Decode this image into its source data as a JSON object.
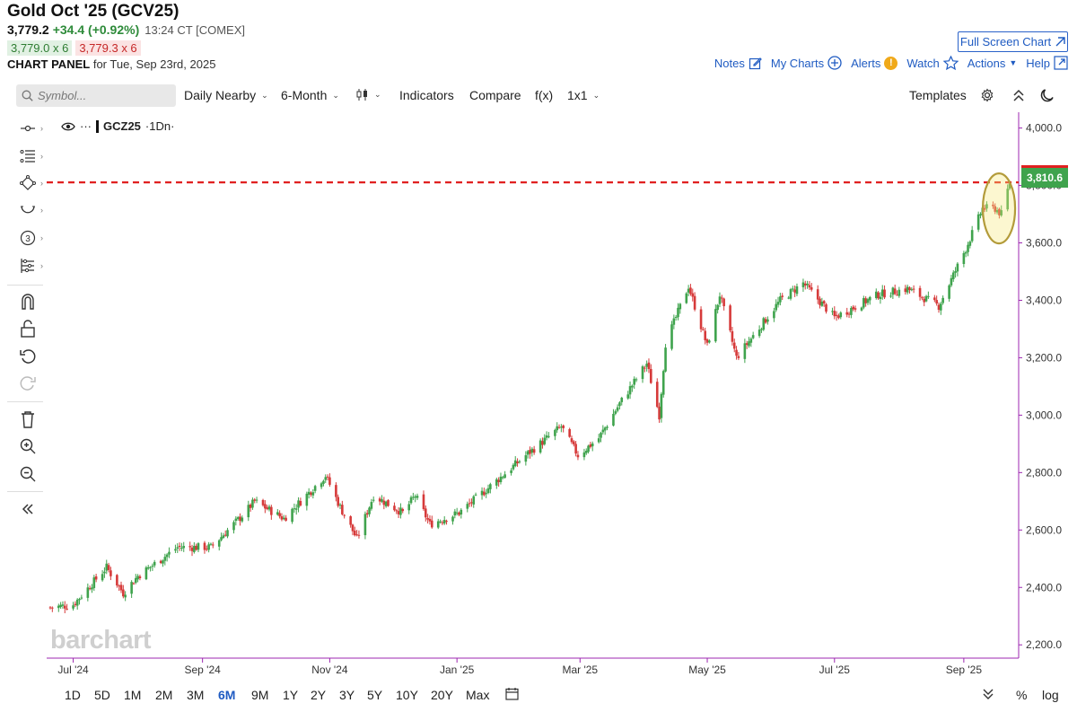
{
  "header": {
    "title": "Gold Oct '25 (GCV25)",
    "last": "3,779.2",
    "change": "+34.4 (+0.92%)",
    "time": "13:24 CT [COMEX]",
    "bid": "3,779.0 x 6",
    "ask": "3,779.3 x 6",
    "panel_label": "CHART PANEL",
    "panel_date": "for Tue, Sep 23rd, 2025"
  },
  "actions": {
    "full_screen": "Full Screen Chart",
    "notes": "Notes",
    "my_charts": "My Charts",
    "alerts": "Alerts",
    "alerts_badge": "!",
    "watch": "Watch",
    "actions": "Actions",
    "help": "Help"
  },
  "toolbar": {
    "search_placeholder": "Symbol...",
    "aggregation": "Daily Nearby",
    "range": "6-Month",
    "indicators": "Indicators",
    "compare": "Compare",
    "fx": "f(x)",
    "layout": "1x1",
    "templates": "Templates"
  },
  "legend": {
    "dots": "···",
    "symbol": "GCZ25",
    "interval": "·1Dn·"
  },
  "watermark": "barchart",
  "price_tag": "3,810.6",
  "periods": [
    "1D",
    "5D",
    "1M",
    "2M",
    "3M",
    "6M",
    "9M",
    "1Y",
    "2Y",
    "3Y",
    "5Y",
    "10Y",
    "20Y",
    "Max"
  ],
  "active_period": "6M",
  "bottom_right": {
    "percent": "%",
    "log": "log"
  },
  "colors": {
    "up": "#3fa34d",
    "down": "#d63a3a",
    "accent": "#1f5bc2",
    "line": "#e02020",
    "ellipse": "#b39b3a"
  },
  "chart_data": {
    "type": "candlestick",
    "symbol": "GCZ25",
    "y_ticks": [
      "4,000.0",
      "3,800.0",
      "3,600.0",
      "3,400.0",
      "3,200.0",
      "3,000.0",
      "2,800.0",
      "2,600.0",
      "2,400.0",
      "2,200.0"
    ],
    "y_tick_values": [
      4000,
      3800,
      3600,
      3400,
      3200,
      3000,
      2800,
      2600,
      2400,
      2200
    ],
    "x_ticks": [
      "Jul '24",
      "Sep '24",
      "Nov '24",
      "Jan '25",
      "Mar '25",
      "May '25",
      "Jul '25",
      "Sep '25"
    ],
    "ylim": [
      2160,
      4030
    ],
    "horizontal_line": 3810.6,
    "approx_closes": [
      [
        "2024-06-20",
        2330
      ],
      [
        "2024-07-01",
        2340
      ],
      [
        "2024-07-17",
        2470
      ],
      [
        "2024-07-25",
        2380
      ],
      [
        "2024-08-01",
        2440
      ],
      [
        "2024-08-20",
        2540
      ],
      [
        "2024-09-05",
        2540
      ],
      [
        "2024-09-20",
        2650
      ],
      [
        "2024-09-26",
        2700
      ],
      [
        "2024-10-10",
        2640
      ],
      [
        "2024-10-30",
        2790
      ],
      [
        "2024-11-06",
        2680
      ],
      [
        "2024-11-14",
        2570
      ],
      [
        "2024-11-22",
        2720
      ],
      [
        "2024-12-06",
        2660
      ],
      [
        "2024-12-12",
        2720
      ],
      [
        "2024-12-19",
        2620
      ],
      [
        "2025-01-02",
        2660
      ],
      [
        "2025-01-15",
        2740
      ],
      [
        "2025-02-03",
        2860
      ],
      [
        "2025-02-20",
        2960
      ],
      [
        "2025-02-28",
        2860
      ],
      [
        "2025-03-10",
        2920
      ],
      [
        "2025-03-20",
        3040
      ],
      [
        "2025-04-02",
        3180
      ],
      [
        "2025-04-08",
        3000
      ],
      [
        "2025-04-11",
        3250
      ],
      [
        "2025-04-22",
        3450
      ],
      [
        "2025-05-01",
        3240
      ],
      [
        "2025-05-07",
        3420
      ],
      [
        "2025-05-15",
        3200
      ],
      [
        "2025-06-05",
        3400
      ],
      [
        "2025-06-16",
        3460
      ],
      [
        "2025-07-01",
        3340
      ],
      [
        "2025-07-22",
        3420
      ],
      [
        "2025-08-05",
        3440
      ],
      [
        "2025-08-20",
        3380
      ],
      [
        "2025-09-02",
        3580
      ],
      [
        "2025-09-10",
        3720
      ],
      [
        "2025-09-16",
        3720
      ],
      [
        "2025-09-19",
        3700
      ],
      [
        "2025-09-23",
        3810
      ]
    ]
  }
}
